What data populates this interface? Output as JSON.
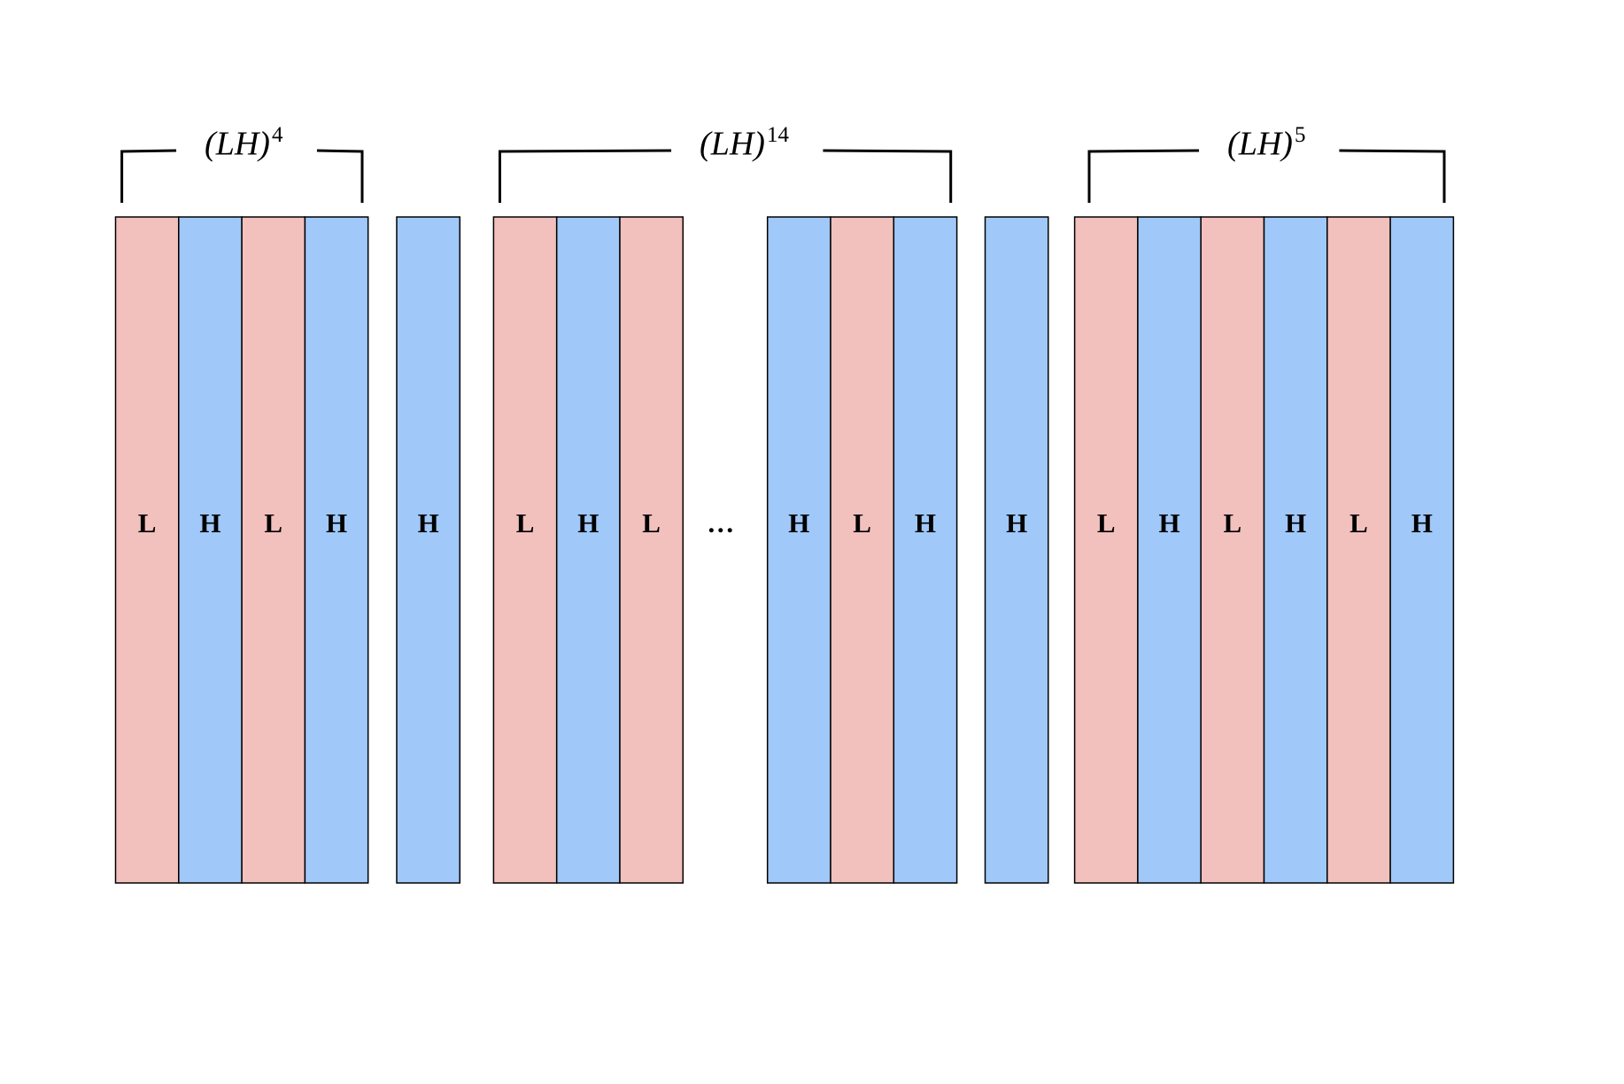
{
  "brackets": [
    {
      "label": "(LH)",
      "exponent": "4"
    },
    {
      "label": "(LH)",
      "exponent": "14"
    },
    {
      "label": "(LH)",
      "exponent": "5"
    }
  ],
  "blocks": [
    {
      "cells": [
        "L",
        "H",
        "L",
        "H"
      ]
    },
    {
      "cells": [
        "H"
      ]
    },
    {
      "cells": [
        "L",
        "H",
        "L"
      ]
    },
    {
      "ellipsis": "…"
    },
    {
      "cells": [
        "H",
        "L",
        "H"
      ]
    },
    {
      "cells": [
        "H"
      ]
    },
    {
      "cells": [
        "L",
        "H",
        "L",
        "H",
        "L",
        "H"
      ]
    }
  ]
}
